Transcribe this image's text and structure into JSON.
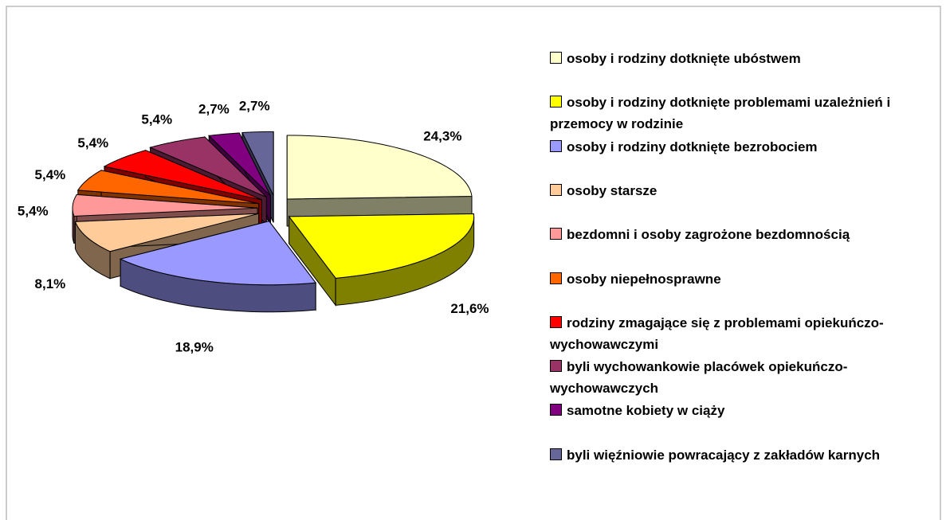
{
  "chart_data": {
    "type": "pie",
    "categories": [
      "osoby i rodziny dotknięte ubóstwem",
      "osoby i rodziny dotknięte problemami uzależnień i przemocy w rodzinie",
      "osoby i rodziny dotknięte bezrobociem",
      "osoby starsze",
      "bezdomni i osoby zagrożone bezdomnością",
      "osoby niepełnosprawne",
      "rodziny zmagające się z problemami opiekuńczo-wychowawczymi",
      "byli wychowankowie placówek opiekuńczo-wychowawczych",
      "samotne kobiety w ciąży",
      "byli więźniowie powracający z zakładów karnych"
    ],
    "values": [
      24.3,
      21.6,
      18.9,
      8.1,
      5.4,
      5.4,
      5.4,
      5.4,
      2.7,
      2.7
    ],
    "value_labels": [
      "24,3%",
      "21,6%",
      "18,9%",
      "8,1%",
      "5,4%",
      "5,4%",
      "5,4%",
      "5,4%",
      "2,7%",
      "2,7%"
    ],
    "colors": [
      "#ffffcc",
      "#ffff00",
      "#9999ff",
      "#ffcc99",
      "#ff9999",
      "#ff6600",
      "#ff0000",
      "#993366",
      "#800080",
      "#666699"
    ],
    "legend": "right"
  }
}
